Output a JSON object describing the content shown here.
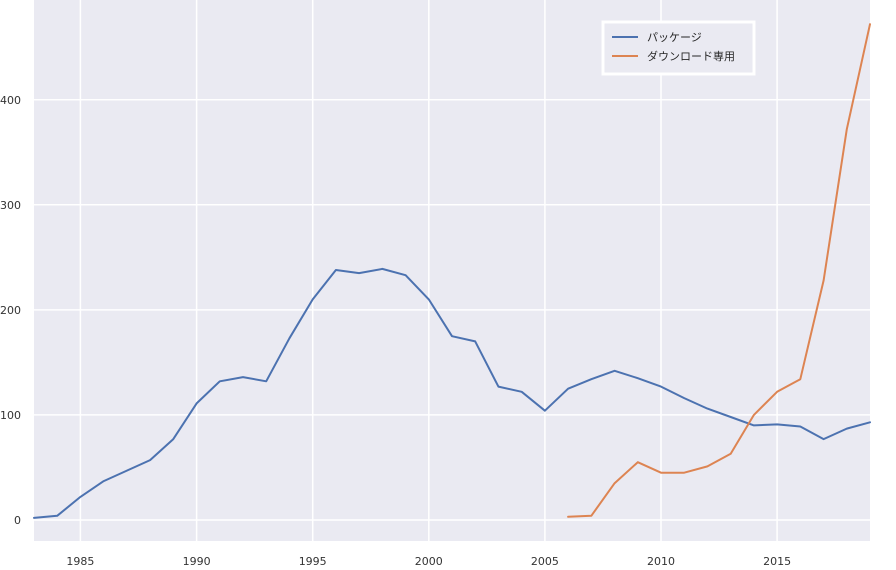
{
  "chart_data": {
    "type": "line",
    "title": "",
    "xlabel": "",
    "ylabel": "",
    "xlim": [
      1983,
      2019
    ],
    "ylim": [
      -20,
      495
    ],
    "x_ticks": [
      1985,
      1990,
      1995,
      2000,
      2005,
      2010,
      2015
    ],
    "y_ticks": [
      0,
      100,
      200,
      300,
      400
    ],
    "grid": true,
    "legend_position": "top-right",
    "series": [
      {
        "name": "パッケージ",
        "color": "#4c72b0",
        "x": [
          1983,
          1984,
          1985,
          1986,
          1987,
          1988,
          1989,
          1990,
          1991,
          1992,
          1993,
          1994,
          1995,
          1996,
          1997,
          1998,
          1999,
          2000,
          2001,
          2002,
          2003,
          2004,
          2005,
          2006,
          2007,
          2008,
          2009,
          2010,
          2011,
          2012,
          2013,
          2014,
          2015,
          2016,
          2017,
          2018,
          2019
        ],
        "y": [
          2,
          4,
          22,
          37,
          47,
          57,
          77,
          111,
          132,
          136,
          132,
          173,
          210,
          238,
          235,
          239,
          233,
          210,
          175,
          170,
          127,
          122,
          104,
          125,
          134,
          142,
          135,
          127,
          116,
          106,
          98,
          90,
          91,
          89,
          77,
          87,
          93
        ]
      },
      {
        "name": "ダウンロード専用",
        "color": "#dd8452",
        "x": [
          2006,
          2007,
          2008,
          2009,
          2010,
          2011,
          2012,
          2013,
          2014,
          2015,
          2016,
          2017,
          2018,
          2019
        ],
        "y": [
          3,
          4,
          35,
          55,
          45,
          45,
          51,
          63,
          100,
          122,
          134,
          228,
          372,
          472
        ]
      }
    ]
  }
}
